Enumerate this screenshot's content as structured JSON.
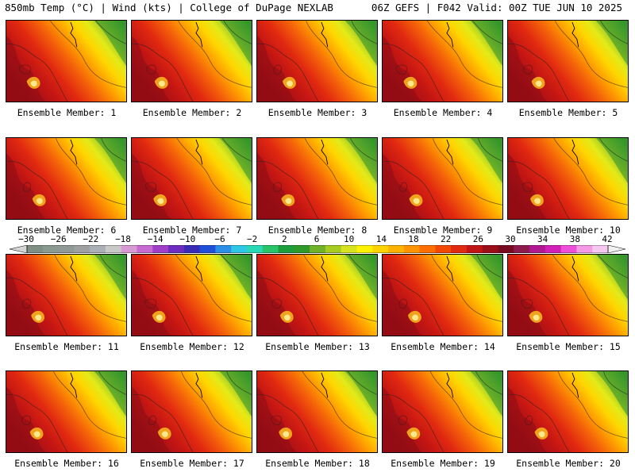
{
  "header": {
    "title": "850mb Temp (°C) | Wind (kts) | College of DuPage NEXLAB",
    "info": "06Z GEFS | F042 Valid: 00Z TUE JUN 10 2025"
  },
  "colorbar": {
    "tick_labels": [
      "−30",
      "−26",
      "−22",
      "−18",
      "−14",
      "−10",
      "−6",
      "−2",
      "2",
      "6",
      "10",
      "14",
      "18",
      "22",
      "26",
      "30",
      "34",
      "38",
      "42"
    ],
    "colors": [
      "#7f8f83",
      "#8a9a90",
      "#909996",
      "#9ea0a2",
      "#aab0b6",
      "#c9c9c9",
      "#d79ad2",
      "#c86bd0",
      "#a13ec8",
      "#6d2bc0",
      "#3a2bb6",
      "#1f4fd8",
      "#2b8fe8",
      "#2fc7e6",
      "#29d9b5",
      "#27c46a",
      "#1c9e3c",
      "#2f9a2a",
      "#6fb22a",
      "#a6cc22",
      "#d7e31f",
      "#fff200",
      "#ffd400",
      "#ffb300",
      "#ff9400",
      "#ff6f00",
      "#f24a06",
      "#e12a12",
      "#c11414",
      "#9b0e18",
      "#7a0a1f",
      "#8e1b4e",
      "#b0198f",
      "#d21fb7",
      "#ef4ed8",
      "#f59be6",
      "#f7c8ef"
    ]
  },
  "panels": [
    {
      "label": "Ensemble Member: 1"
    },
    {
      "label": "Ensemble Member: 2"
    },
    {
      "label": "Ensemble Member: 3"
    },
    {
      "label": "Ensemble Member: 4"
    },
    {
      "label": "Ensemble Member: 5"
    },
    {
      "label": "Ensemble Member: 6"
    },
    {
      "label": "Ensemble Member: 7"
    },
    {
      "label": "Ensemble Member: 8"
    },
    {
      "label": "Ensemble Member: 9"
    },
    {
      "label": "Ensemble Member: 10"
    },
    {
      "label": "Ensemble Member: 11"
    },
    {
      "label": "Ensemble Member: 12"
    },
    {
      "label": "Ensemble Member: 13"
    },
    {
      "label": "Ensemble Member: 14"
    },
    {
      "label": "Ensemble Member: 15"
    },
    {
      "label": "Ensemble Member: 16"
    },
    {
      "label": "Ensemble Member: 17"
    },
    {
      "label": "Ensemble Member: 18"
    },
    {
      "label": "Ensemble Member: 19"
    },
    {
      "label": "Ensemble Member: 20"
    }
  ]
}
